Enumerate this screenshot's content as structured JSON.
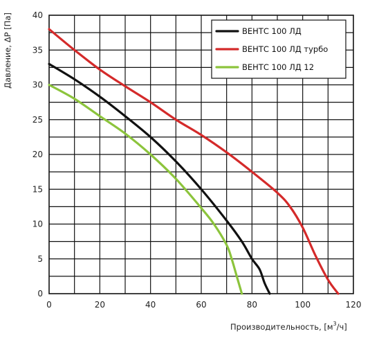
{
  "chart_data": {
    "type": "line",
    "xlabel": "Производительность, [м",
    "xlabel_sup": "3",
    "xlabel_suffix": "/ч]",
    "ylabel": "Давление, ΔP [Па]",
    "xlim": [
      0,
      120
    ],
    "ylim": [
      0,
      40
    ],
    "x_ticks": [
      "0",
      "20",
      "40",
      "60",
      "80",
      "100",
      "120"
    ],
    "y_ticks": [
      "0",
      "5",
      "10",
      "15",
      "20",
      "25",
      "30",
      "35",
      "40"
    ],
    "grid": true,
    "legend_position": "top-right",
    "series": [
      {
        "name": "ВЕНТС 100 ЛД",
        "color": "#111111",
        "points": [
          [
            0,
            33
          ],
          [
            10,
            30.8
          ],
          [
            20,
            28.3
          ],
          [
            30,
            25.5
          ],
          [
            40,
            22.5
          ],
          [
            50,
            19
          ],
          [
            60,
            15
          ],
          [
            70,
            10.5
          ],
          [
            76,
            7.5
          ],
          [
            80,
            5
          ],
          [
            83,
            3.5
          ],
          [
            85,
            1.5
          ],
          [
            87,
            0
          ]
        ]
      },
      {
        "name": "ВЕНТС 100 ЛД турбо",
        "color": "#d42a2a",
        "points": [
          [
            0,
            38
          ],
          [
            10,
            35
          ],
          [
            20,
            32.2
          ],
          [
            30,
            29.8
          ],
          [
            40,
            27.5
          ],
          [
            50,
            25
          ],
          [
            60,
            22.8
          ],
          [
            70,
            20.3
          ],
          [
            80,
            17.5
          ],
          [
            90,
            14.5
          ],
          [
            95,
            12.5
          ],
          [
            100,
            9.5
          ],
          [
            105,
            5.5
          ],
          [
            110,
            2
          ],
          [
            114,
            0
          ]
        ]
      },
      {
        "name": "ВЕНТС 100 ЛД  12",
        "color": "#8cc43c",
        "points": [
          [
            0,
            30
          ],
          [
            10,
            28
          ],
          [
            20,
            25.5
          ],
          [
            30,
            23
          ],
          [
            40,
            20
          ],
          [
            50,
            16.5
          ],
          [
            60,
            12.3
          ],
          [
            65,
            10
          ],
          [
            70,
            7
          ],
          [
            72,
            5
          ],
          [
            74,
            2.5
          ],
          [
            76,
            0
          ]
        ]
      }
    ]
  }
}
